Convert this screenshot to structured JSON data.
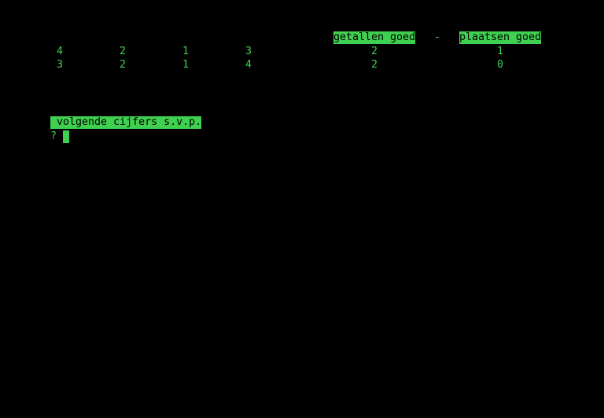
{
  "header": {
    "numbers_correct": "getallen goed",
    "separator": "-",
    "places_correct": "plaatsen goed"
  },
  "guesses": [
    {
      "digits": [
        "4",
        "2",
        "1",
        "3"
      ],
      "numbers_correct": "2",
      "places_correct": "1"
    },
    {
      "digits": [
        "3",
        "2",
        "1",
        "4"
      ],
      "numbers_correct": "2",
      "places_correct": "0"
    }
  ],
  "prompt": {
    "message": " volgende cijfers s.v.p.",
    "input_prompt": "?",
    "input_value": ""
  },
  "colors": {
    "foreground": "#40d050",
    "background": "#000000"
  }
}
